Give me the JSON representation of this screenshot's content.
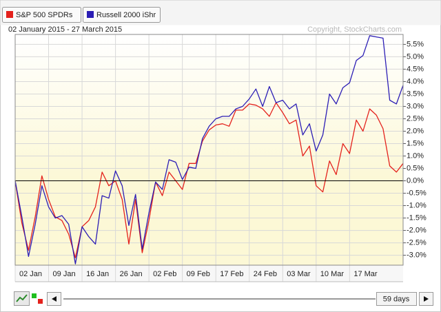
{
  "chart_data": {
    "type": "line",
    "subtitle": "02 January 2015 - 27 March 2015",
    "copyright": "Copyright, StockCharts.com",
    "range_button": "59 days",
    "categories": [
      "02 Jan",
      null,
      null,
      null,
      null,
      "09 Jan",
      null,
      null,
      null,
      null,
      "16 Jan",
      null,
      null,
      null,
      null,
      "26 Jan",
      null,
      null,
      null,
      null,
      "02 Feb",
      null,
      null,
      null,
      null,
      "09 Feb",
      null,
      null,
      null,
      null,
      "17 Feb",
      null,
      null,
      null,
      null,
      "24 Feb",
      null,
      null,
      null,
      null,
      "03 Mar",
      null,
      null,
      null,
      null,
      "10 Mar",
      null,
      null,
      null,
      null,
      "17 Mar",
      null,
      null,
      null,
      null,
      null,
      null,
      null,
      null
    ],
    "series": [
      {
        "name": "S&P 500 SPDRs",
        "color": "#e4211c",
        "values": [
          0,
          -1.7,
          -2.8,
          -1.45,
          0.2,
          -0.75,
          -1.45,
          -1.6,
          -2.15,
          -3.1,
          -1.85,
          -1.6,
          -1.05,
          0.35,
          -0.2,
          0.0,
          -0.75,
          -2.55,
          -0.75,
          -2.9,
          -1.6,
          -0.05,
          -0.6,
          0.35,
          0.0,
          -0.35,
          0.7,
          0.7,
          1.6,
          2.05,
          2.25,
          2.3,
          2.2,
          2.85,
          2.85,
          3.1,
          3.05,
          2.9,
          2.6,
          3.15,
          2.75,
          2.3,
          2.45,
          1.0,
          1.4,
          -0.2,
          -0.45,
          0.8,
          0.25,
          1.5,
          1.1,
          2.45,
          2.0,
          2.9,
          2.65,
          2.1,
          0.6,
          0.35,
          0.7
        ]
      },
      {
        "name": "Russell 2000 iShr",
        "color": "#2b1db5",
        "values": [
          0,
          -1.45,
          -3.05,
          -1.75,
          -0.2,
          -1.05,
          -1.5,
          -1.4,
          -1.75,
          -3.35,
          -1.85,
          -2.25,
          -2.55,
          -0.6,
          -0.7,
          0.4,
          -0.2,
          -1.8,
          -0.55,
          -2.75,
          -1.3,
          -0.05,
          -0.35,
          0.85,
          0.75,
          0.05,
          0.55,
          0.5,
          1.7,
          2.2,
          2.5,
          2.6,
          2.6,
          2.9,
          3.0,
          3.3,
          3.7,
          3.0,
          3.8,
          3.15,
          3.25,
          2.9,
          3.1,
          1.85,
          2.3,
          1.2,
          1.85,
          3.5,
          3.1,
          3.75,
          3.95,
          4.85,
          5.05,
          5.85,
          5.8,
          5.75,
          3.25,
          3.1,
          3.85
        ]
      }
    ],
    "ylim": [
      -3.4,
      5.9
    ],
    "yticks": [
      {
        "value": 5.5,
        "label": "5.5%"
      },
      {
        "value": 5.0,
        "label": "5.0%"
      },
      {
        "value": 4.5,
        "label": "4.5%"
      },
      {
        "value": 4.0,
        "label": "4.0%"
      },
      {
        "value": 3.5,
        "label": "3.5%"
      },
      {
        "value": 3.0,
        "label": "3.0%"
      },
      {
        "value": 2.5,
        "label": "2.5%"
      },
      {
        "value": 2.0,
        "label": "2.0%"
      },
      {
        "value": 1.5,
        "label": "1.5%"
      },
      {
        "value": 1.0,
        "label": "1.0%"
      },
      {
        "value": 0.5,
        "label": "0.5%"
      },
      {
        "value": 0.0,
        "label": "0.0%"
      },
      {
        "value": -0.5,
        "label": "-0.5%"
      },
      {
        "value": -1.0,
        "label": "-1.0%"
      },
      {
        "value": -1.5,
        "label": "-1.5%"
      },
      {
        "value": -2.0,
        "label": "-2.0%"
      },
      {
        "value": -2.5,
        "label": "-2.5%"
      },
      {
        "value": -3.0,
        "label": "-3.0%"
      }
    ],
    "grid": true
  }
}
